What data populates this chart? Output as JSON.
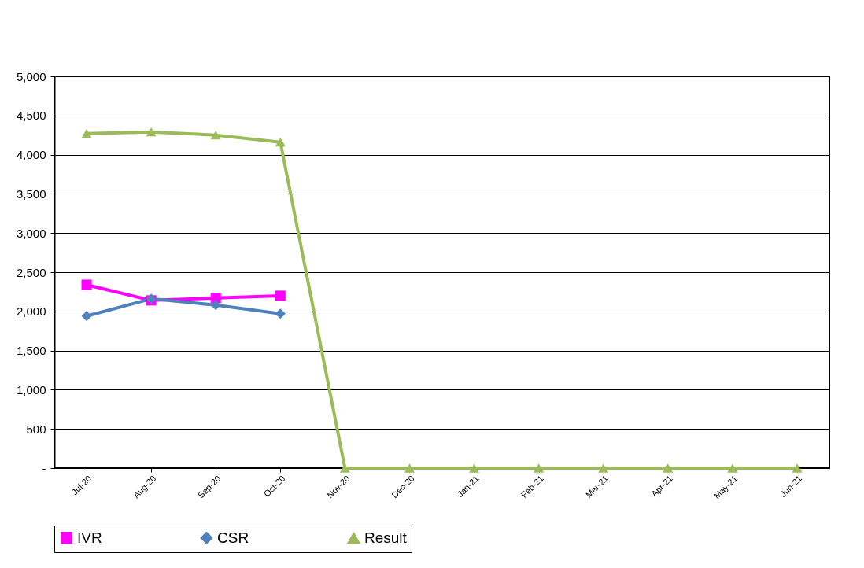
{
  "chart_data": {
    "type": "line",
    "categories": [
      "Jul-20",
      "Aug-20",
      "Sep-20",
      "Oct-20",
      "Nov-20",
      "Dec-20",
      "Jan-21",
      "Feb-21",
      "Mar-21",
      "Apr-21",
      "May-21",
      "Jun-21"
    ],
    "series": [
      {
        "name": "IVR",
        "color": "#ff00ff",
        "marker": "square",
        "values": [
          2340,
          2140,
          2170,
          2200,
          null,
          null,
          null,
          null,
          null,
          null,
          null,
          null
        ]
      },
      {
        "name": "CSR",
        "color": "#4f81bd",
        "marker": "diamond",
        "values": [
          1940,
          2160,
          2080,
          1970,
          null,
          null,
          null,
          null,
          null,
          null,
          null,
          null
        ]
      },
      {
        "name": "Result",
        "color": "#9bbb59",
        "marker": "triangle",
        "values": [
          4270,
          4290,
          4250,
          4160,
          0,
          0,
          0,
          0,
          0,
          0,
          0,
          0
        ]
      }
    ],
    "ylim": [
      0,
      5000
    ],
    "yticks": [
      {
        "value": 0,
        "label": "-"
      },
      500,
      {
        "value": 1000,
        "label": "1,000"
      },
      {
        "value": 1500,
        "label": "1,500"
      },
      {
        "value": 2000,
        "label": "2,000"
      },
      {
        "value": 2500,
        "label": "2,500"
      },
      {
        "value": 3000,
        "label": "3,000"
      },
      {
        "value": 3500,
        "label": "3,500"
      },
      {
        "value": 4000,
        "label": "4,000"
      },
      {
        "value": 4500,
        "label": "4,500"
      },
      {
        "value": 5000,
        "label": "5,000"
      }
    ],
    "grid": "y",
    "legend": "bottom",
    "line_style": "solid"
  }
}
